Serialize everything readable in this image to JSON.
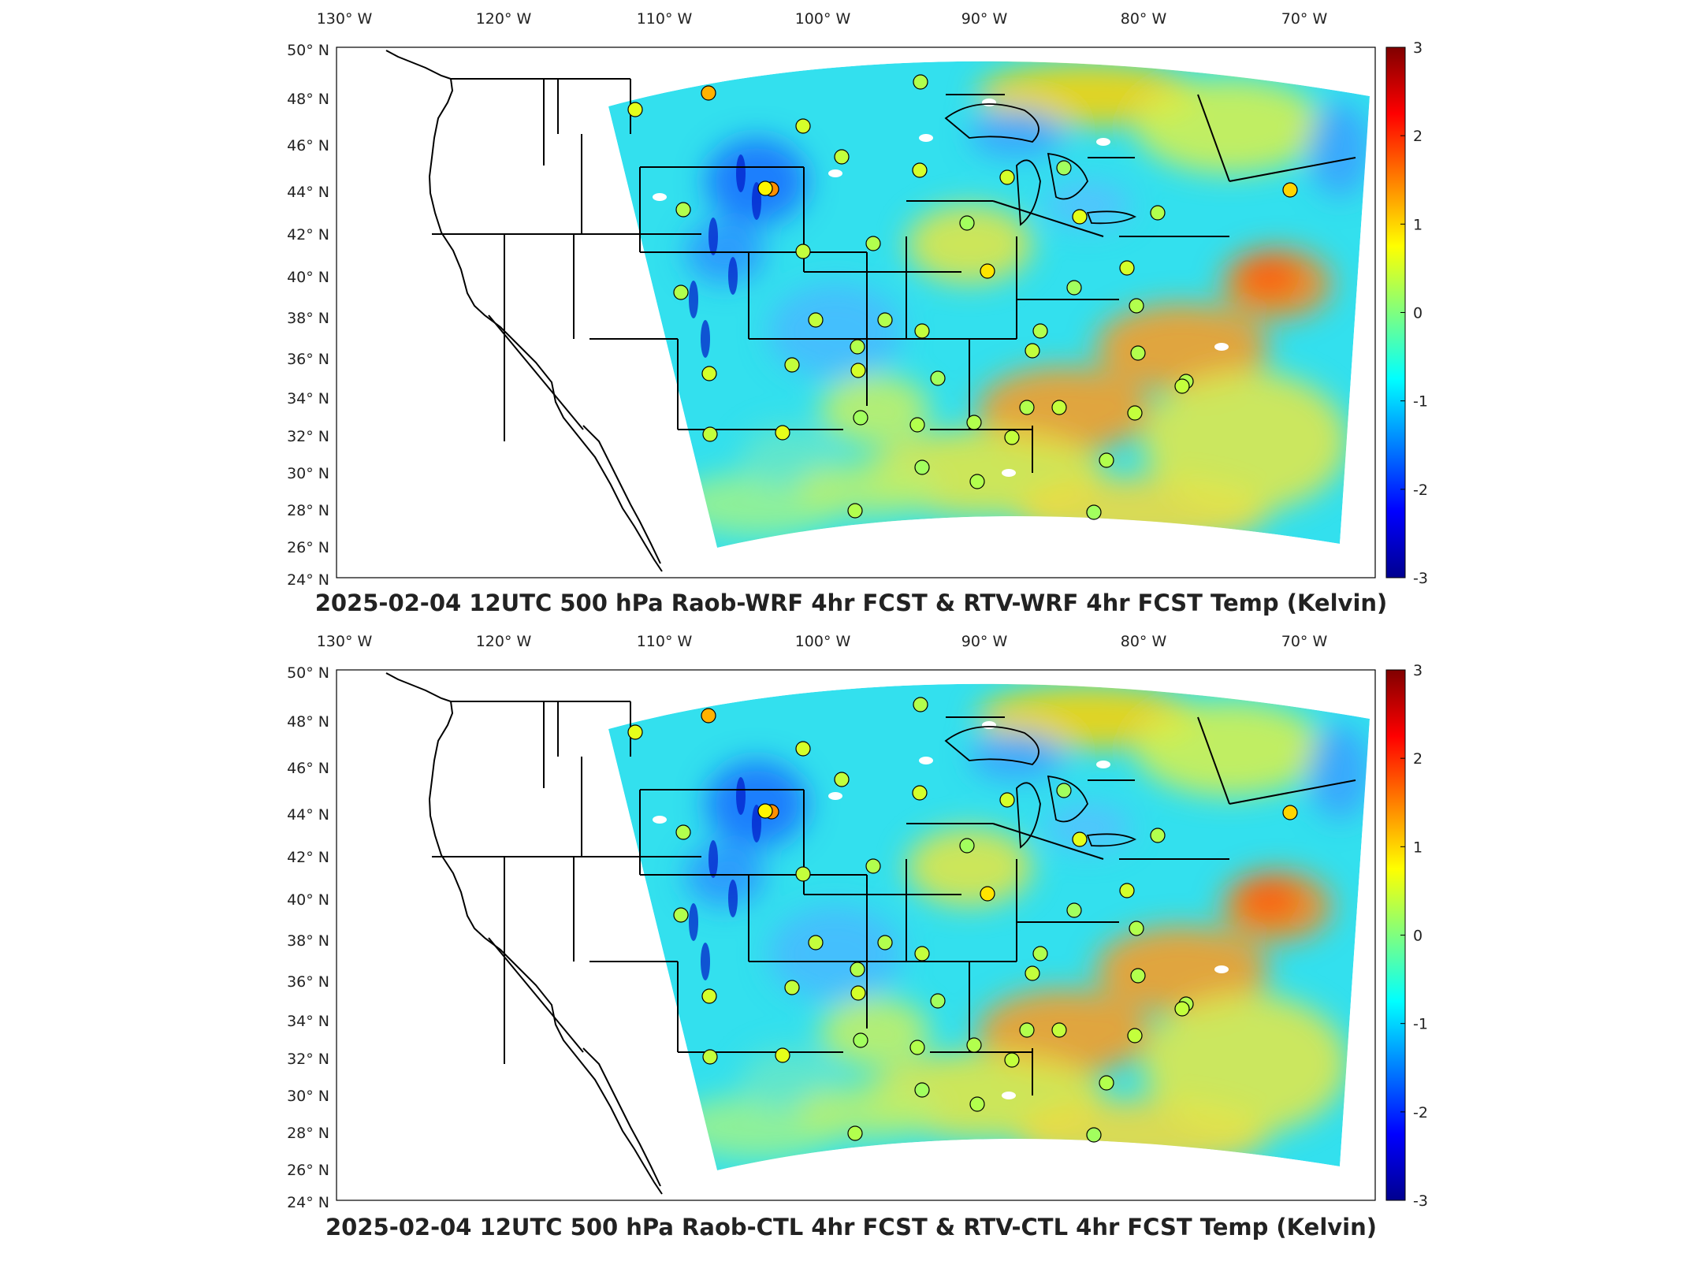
{
  "panels": [
    {
      "title": "2025-02-04 12UTC 500 hPa Raob-WRF 4hr FCST & RTV-WRF 4hr FCST Temp (Kelvin)"
    },
    {
      "title": "2025-02-04 12UTC 500 hPa Raob-CTL 4hr FCST & RTV-CTL 4hr FCST Temp (Kelvin)"
    }
  ],
  "lon_labels": [
    "130",
    "120",
    "110",
    "100",
    "90",
    "80",
    "70"
  ],
  "lon_suffix": "W",
  "lat_labels": [
    "50",
    "48",
    "46",
    "44",
    "42",
    "40",
    "38",
    "36",
    "34",
    "32",
    "30",
    "28",
    "26",
    "24"
  ],
  "lat_suffix": "N",
  "colorbar": {
    "ticks": [
      "3",
      "2",
      "1",
      "0",
      "-1",
      "-2",
      "-3"
    ],
    "min": -3,
    "max": 3,
    "colormap": "jet"
  },
  "colors": {
    "dark_blue": "#00008f",
    "blue": "#0050ff",
    "cyan": "#00e0ff",
    "green": "#7fff7f",
    "yellow": "#ffff00",
    "orange": "#ff8000",
    "dark_red": "#800000"
  }
}
